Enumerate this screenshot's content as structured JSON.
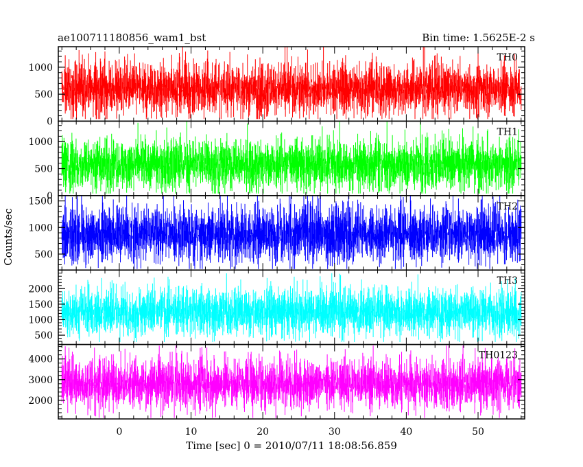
{
  "chart_data": {
    "type": "line",
    "title_left": "ae100711180856_wam1_bst",
    "title_right": "Bin time: 1.5625E-2 s",
    "xlabel": "Time [sec] 0 = 2010/07/11 18:08:56.859",
    "ylabel": "Counts/sec",
    "xlim": [
      -8.5,
      56.5
    ],
    "x_ticks": [
      0,
      10,
      20,
      30,
      40,
      50
    ],
    "x_tick_labels": [
      "0",
      "10",
      "20",
      "30",
      "40",
      "50"
    ],
    "data_x_range": [
      -8,
      56
    ],
    "grid": false,
    "series": [
      {
        "name": "TH0",
        "color": "#ff0000",
        "ylim": [
          0,
          1380
        ],
        "y_ticks": [
          0,
          500,
          1000
        ],
        "y_tick_labels": [
          "0",
          "500",
          "1000"
        ],
        "baseline": 600,
        "noise": 210,
        "min": 40,
        "max": 1400
      },
      {
        "name": "TH1",
        "color": "#00ff00",
        "ylim": [
          0,
          1380
        ],
        "y_ticks": [
          0,
          500,
          1000
        ],
        "y_tick_labels": [
          "0",
          "500",
          "1000"
        ],
        "baseline": 580,
        "noise": 210,
        "min": 40,
        "max": 1400
      },
      {
        "name": "TH2",
        "color": "#0000ff",
        "ylim": [
          200,
          1600
        ],
        "y_ticks": [
          500,
          1000,
          1500
        ],
        "y_tick_labels": [
          "500",
          "1000",
          "1500"
        ],
        "baseline": 880,
        "noise": 230,
        "min": 220,
        "max": 1620
      },
      {
        "name": "TH3",
        "color": "#00ffff",
        "ylim": [
          200,
          2600
        ],
        "y_ticks": [
          500,
          1000,
          1500,
          2000
        ],
        "y_tick_labels": [
          "500",
          "1000",
          "1500",
          "2000"
        ],
        "baseline": 1250,
        "noise": 330,
        "min": 280,
        "max": 2500
      },
      {
        "name": "TH0123",
        "color": "#ff00ff",
        "ylim": [
          1100,
          4700
        ],
        "y_ticks": [
          2000,
          3000,
          4000
        ],
        "y_tick_labels": [
          "2000",
          "3000",
          "4000"
        ],
        "baseline": 2800,
        "noise": 520,
        "min": 1150,
        "max": 4650
      }
    ]
  }
}
